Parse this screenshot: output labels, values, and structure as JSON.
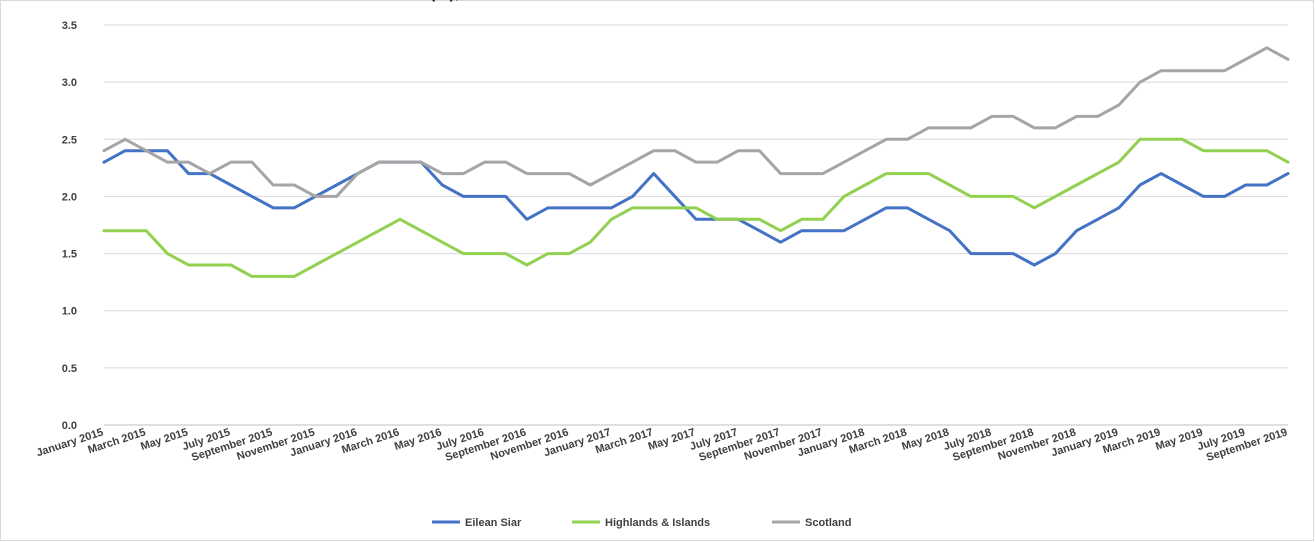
{
  "chart_data": {
    "type": "line",
    "title": "",
    "title_fragment": "(%),",
    "xlabel": "",
    "ylabel": "",
    "ylim": [
      0,
      3.5
    ],
    "y_ticks": [
      "0.0",
      "0.5",
      "1.0",
      "1.5",
      "2.0",
      "2.5",
      "3.0",
      "3.5"
    ],
    "grid": "horizontal",
    "legend_position": "bottom",
    "x": [
      "January 2015",
      "February 2015",
      "March 2015",
      "April 2015",
      "May 2015",
      "June 2015",
      "July 2015",
      "August 2015",
      "September 2015",
      "October 2015",
      "November 2015",
      "December 2015",
      "January 2016",
      "February 2016",
      "March 2016",
      "April 2016",
      "May 2016",
      "June 2016",
      "July 2016",
      "August 2016",
      "September 2016",
      "October 2016",
      "November 2016",
      "December 2016",
      "January 2017",
      "February 2017",
      "March 2017",
      "April 2017",
      "May 2017",
      "June 2017",
      "July 2017",
      "August 2017",
      "September 2017",
      "October 2017",
      "November 2017",
      "December 2017",
      "January 2018",
      "February 2018",
      "March 2018",
      "April 2018",
      "May 2018",
      "June 2018",
      "July 2018",
      "August 2018",
      "September 2018",
      "October 2018",
      "November 2018",
      "December 2018",
      "January 2019",
      "February 2019",
      "March 2019",
      "April 2019",
      "May 2019",
      "June 2019",
      "July 2019",
      "August 2019",
      "September 2019"
    ],
    "x_tick_labels": [
      "January 2015",
      "March 2015",
      "May 2015",
      "July 2015",
      "September 2015",
      "November 2015",
      "January 2016",
      "March 2016",
      "May 2016",
      "July 2016",
      "September 2016",
      "November 2016",
      "January 2017",
      "March 2017",
      "May 2017",
      "July 2017",
      "September 2017",
      "November 2017",
      "January 2018",
      "March 2018",
      "May 2018",
      "July 2018",
      "September 2018",
      "November 2018",
      "January 2019",
      "March 2019",
      "May 2019",
      "July 2019",
      "September 2019"
    ],
    "series": [
      {
        "name": "Eilean Siar",
        "color": "#4472C4",
        "values": [
          2.3,
          2.4,
          2.4,
          2.4,
          2.2,
          2.2,
          2.1,
          2.0,
          1.9,
          1.9,
          2.0,
          2.1,
          2.2,
          2.3,
          2.3,
          2.3,
          2.1,
          2.0,
          2.0,
          2.0,
          1.8,
          1.9,
          1.9,
          1.9,
          1.9,
          2.0,
          2.2,
          2.0,
          1.8,
          1.8,
          1.8,
          1.7,
          1.6,
          1.7,
          1.7,
          1.7,
          1.8,
          1.9,
          1.9,
          1.8,
          1.7,
          1.5,
          1.5,
          1.5,
          1.4,
          1.5,
          1.7,
          1.8,
          1.9,
          2.1,
          2.2,
          2.1,
          2.0,
          2.0,
          2.1,
          2.1,
          2.2
        ]
      },
      {
        "name": "Highlands & Islands",
        "color": "#92D050",
        "values": [
          1.7,
          1.7,
          1.7,
          1.5,
          1.4,
          1.4,
          1.4,
          1.3,
          1.3,
          1.3,
          1.4,
          1.5,
          1.6,
          1.7,
          1.8,
          1.7,
          1.6,
          1.5,
          1.5,
          1.5,
          1.4,
          1.5,
          1.5,
          1.6,
          1.8,
          1.9,
          1.9,
          1.9,
          1.9,
          1.8,
          1.8,
          1.8,
          1.7,
          1.8,
          1.8,
          2.0,
          2.1,
          2.2,
          2.2,
          2.2,
          2.1,
          2.0,
          2.0,
          2.0,
          1.9,
          2.0,
          2.1,
          2.2,
          2.3,
          2.5,
          2.5,
          2.5,
          2.4,
          2.4,
          2.4,
          2.4,
          2.3
        ]
      },
      {
        "name": "Scotland",
        "color": "#A5A5A5",
        "values": [
          2.4,
          2.5,
          2.4,
          2.3,
          2.3,
          2.2,
          2.3,
          2.3,
          2.1,
          2.1,
          2.0,
          2.0,
          2.2,
          2.3,
          2.3,
          2.3,
          2.2,
          2.2,
          2.3,
          2.3,
          2.2,
          2.2,
          2.2,
          2.1,
          2.2,
          2.3,
          2.4,
          2.4,
          2.3,
          2.3,
          2.4,
          2.4,
          2.2,
          2.2,
          2.2,
          2.3,
          2.4,
          2.5,
          2.5,
          2.6,
          2.6,
          2.6,
          2.7,
          2.7,
          2.6,
          2.6,
          2.7,
          2.7,
          2.8,
          3.0,
          3.1,
          3.1,
          3.1,
          3.1,
          3.2,
          3.3,
          3.2
        ]
      }
    ]
  },
  "colors": {
    "grid": "#D9D9D9",
    "axis": "#BFBFBF",
    "text": "#404040",
    "frame": "#D9D9D9"
  }
}
